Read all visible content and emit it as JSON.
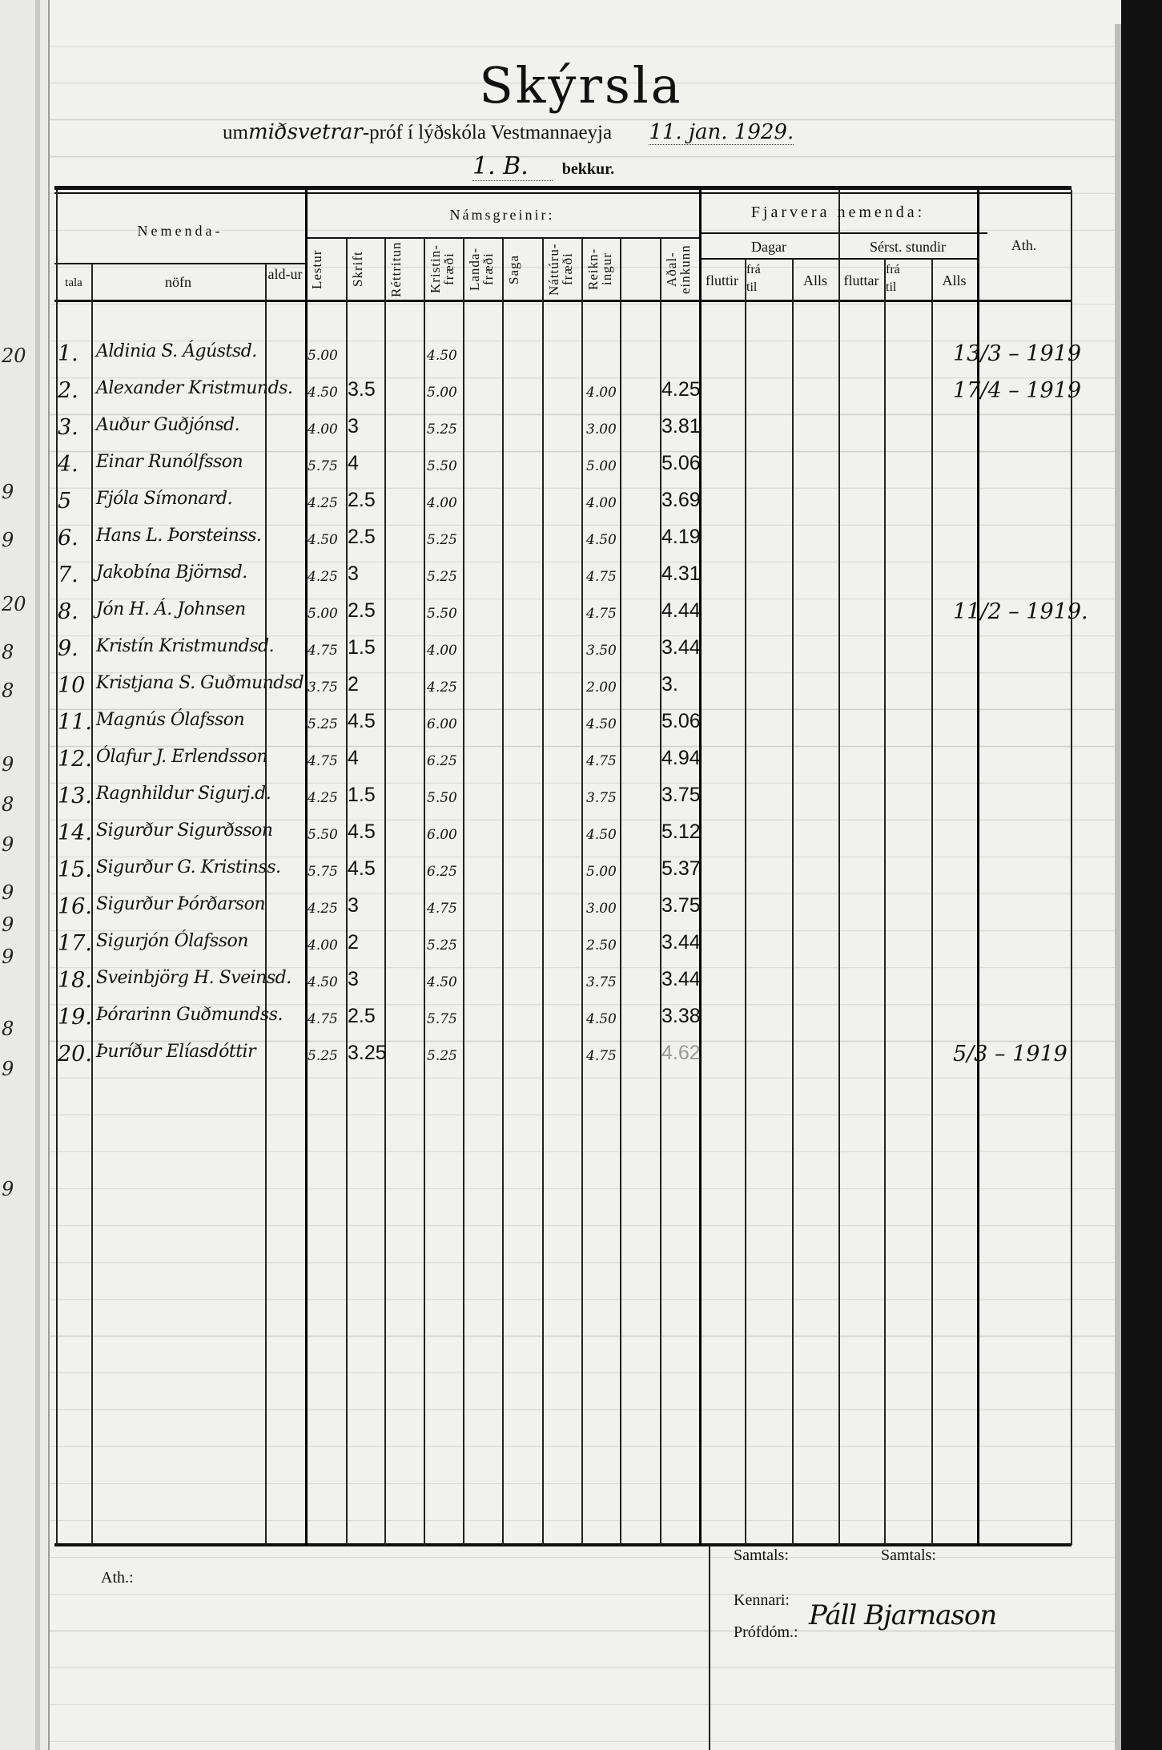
{
  "document": {
    "title": "Skýrsla",
    "line1": {
      "prefix": "um",
      "exam": "miðsvetrar",
      "middle": "-próf í lýðskóla Vestmannaeyja",
      "date": "11. jan. 1929."
    },
    "line2": {
      "class": "1. B.",
      "suffix": "bekkur."
    }
  },
  "header": {
    "nemenda": "Nemenda-",
    "tala": "tala",
    "nofn": "nöfn",
    "aldur": "ald-ur",
    "namsgreinir": "Námsgreinir:",
    "subjects": [
      "Lestur",
      "Skrift",
      "Réttritun",
      "Kristin-fræði",
      "Landa-fræði",
      "Saga",
      "Náttúru-fræði",
      "Reikn-ingur",
      "",
      "Aðal-einkunn"
    ],
    "fjarvera": "Fjarvera nemenda:",
    "dagar": "Dagar",
    "serst": "Sérst. stundir",
    "flutir": "fluttir",
    "fra": "frá",
    "til": "til",
    "alls": "Alls",
    "fluttar": "fluttar",
    "ath": "Ath."
  },
  "students": [
    {
      "nr": "1.",
      "name": "Aldinia S. Ágústsd.",
      "lestur": "5.00",
      "skrift": "",
      "kristin": "4.50",
      "reikn": "",
      "adal": "",
      "ath": "13/3 – 1919"
    },
    {
      "nr": "2.",
      "name": "Alexander Kristmunds.",
      "lestur": "4.50",
      "skrift": "3.5",
      "kristin": "5.00",
      "reikn": "4.00",
      "adal": "4.25",
      "ath": "17/4 – 1919"
    },
    {
      "nr": "3.",
      "name": "Auður Guðjónsd.",
      "lestur": "4.00",
      "skrift": "3",
      "kristin": "5.25",
      "reikn": "3.00",
      "adal": "3.81",
      "ath": ""
    },
    {
      "nr": "4.",
      "name": "Einar Runólfsson",
      "lestur": "5.75",
      "skrift": "4",
      "kristin": "5.50",
      "reikn": "5.00",
      "adal": "5.06",
      "ath": ""
    },
    {
      "nr": "5",
      "name": "Fjóla Símonard.",
      "lestur": "4.25",
      "skrift": "2.5",
      "kristin": "4.00",
      "reikn": "4.00",
      "adal": "3.69",
      "ath": ""
    },
    {
      "nr": "6.",
      "name": "Hans L. Þorsteinss.",
      "lestur": "4.50",
      "skrift": "2.5",
      "kristin": "5.25",
      "reikn": "4.50",
      "adal": "4.19",
      "ath": ""
    },
    {
      "nr": "7.",
      "name": "Jakobína Björnsd.",
      "lestur": "4.25",
      "skrift": "3",
      "kristin": "5.25",
      "reikn": "4.75",
      "adal": "4.31",
      "ath": ""
    },
    {
      "nr": "8.",
      "name": "Jón H. Á. Johnsen",
      "lestur": "5.00",
      "skrift": "2.5",
      "kristin": "5.50",
      "reikn": "4.75",
      "adal": "4.44",
      "ath": "11/2 – 1919."
    },
    {
      "nr": "9.",
      "name": "Kristín Kristmundsd.",
      "lestur": "4.75",
      "skrift": "1.5",
      "kristin": "4.00",
      "reikn": "3.50",
      "adal": "3.44",
      "ath": ""
    },
    {
      "nr": "10",
      "name": "Kristjana S. Guðmundsd.",
      "lestur": "3.75",
      "skrift": "2",
      "kristin": "4.25",
      "reikn": "2.00",
      "adal": "3.",
      "ath": ""
    },
    {
      "nr": "11.",
      "name": "Magnús Ólafsson",
      "lestur": "5.25",
      "skrift": "4.5",
      "kristin": "6.00",
      "reikn": "4.50",
      "adal": "5.06",
      "ath": ""
    },
    {
      "nr": "12.",
      "name": "Ólafur J. Erlendsson",
      "lestur": "4.75",
      "skrift": "4",
      "kristin": "6.25",
      "reikn": "4.75",
      "adal": "4.94",
      "ath": ""
    },
    {
      "nr": "13.",
      "name": "Ragnhildur Sigurj.d.",
      "lestur": "4.25",
      "skrift": "1.5",
      "kristin": "5.50",
      "reikn": "3.75",
      "adal": "3.75",
      "ath": ""
    },
    {
      "nr": "14.",
      "name": "Sigurður Sigurðsson",
      "lestur": "5.50",
      "skrift": "4.5",
      "kristin": "6.00",
      "reikn": "4.50",
      "adal": "5.12",
      "ath": ""
    },
    {
      "nr": "15.",
      "name": "Sigurður G. Kristinss.",
      "lestur": "5.75",
      "skrift": "4.5",
      "kristin": "6.25",
      "reikn": "5.00",
      "adal": "5.37",
      "ath": ""
    },
    {
      "nr": "16.",
      "name": "Sigurður Þórðarson",
      "lestur": "4.25",
      "skrift": "3",
      "kristin": "4.75",
      "reikn": "3.00",
      "adal": "3.75",
      "ath": ""
    },
    {
      "nr": "17.",
      "name": "Sigurjón Ólafsson",
      "lestur": "4.00",
      "skrift": "2",
      "kristin": "5.25",
      "reikn": "2.50",
      "adal": "3.44",
      "ath": ""
    },
    {
      "nr": "18.",
      "name": "Sveinbjörg H. Sveinsd.",
      "lestur": "4.50",
      "skrift": "3",
      "kristin": "4.50",
      "reikn": "3.75",
      "adal": "3.44",
      "ath": ""
    },
    {
      "nr": "19.",
      "name": "Þórarinn Guðmundss.",
      "lestur": "4.75",
      "skrift": "2.5",
      "kristin": "5.75",
      "reikn": "4.50",
      "adal": "3.38",
      "ath": ""
    },
    {
      "nr": "20.",
      "name": "Þuríður Elíasdóttir",
      "lestur": "5.25",
      "skrift": "3.25",
      "kristin": "5.25",
      "reikn": "4.75",
      "adal": "4.62",
      "ath": "5/3 – 1919"
    }
  ],
  "footer": {
    "ath": "Ath.:",
    "samtals1": "Samtals:",
    "samtals2": "Samtals:",
    "kennari": "Kennari:",
    "profdom": "Prófdóm.:",
    "signature": "Páll Bjarnason"
  },
  "previous_page_margin": [
    "20",
    "9",
    "9",
    "20",
    "8",
    "8",
    "9",
    "8",
    "9",
    "9",
    "9",
    "9",
    "8",
    "9",
    "9"
  ]
}
